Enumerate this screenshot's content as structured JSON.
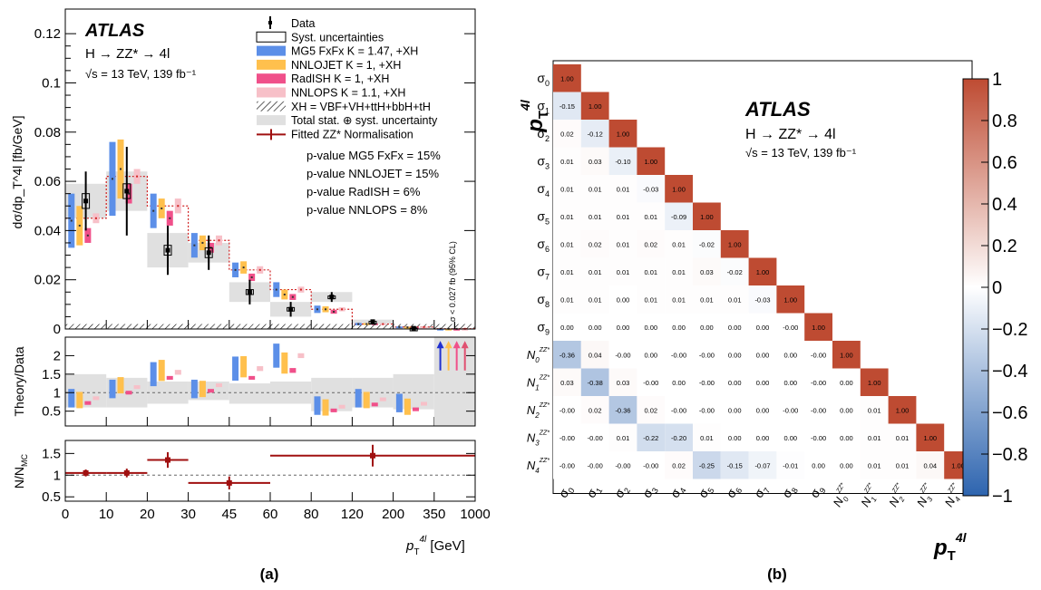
{
  "panel_labels": {
    "a": "(a)",
    "b": "(b)"
  },
  "chart_data": [
    {
      "type": "bar",
      "panel": "a-top",
      "atlas": "ATLAS",
      "process": "H → ZZ* → 4l",
      "energy": "√s = 13 TeV, 139 fb⁻¹",
      "ylabel": "dσ/dp_T^4l [fb/GeV]",
      "xlabel": "p_T^4l [GeV]",
      "ylim": [
        0,
        0.13
      ],
      "y_ticks": [
        "0",
        "0.02",
        "0.04",
        "0.06",
        "0.08",
        "0.1",
        "0.12"
      ],
      "x_ticks": [
        "0",
        "10",
        "20",
        "30",
        "45",
        "60",
        "80",
        "120",
        "200",
        "350",
        "1000"
      ],
      "y_ticks_ratio": [
        "0.5",
        "1",
        "1.5",
        "2"
      ],
      "ylabel_ratio": "Theory/Data",
      "upper_limit_note": "σ < 0.027 fb (95% CL)",
      "legend": [
        {
          "label": "Data",
          "color": "#000000"
        },
        {
          "label": "Syst. uncertainties",
          "color": "#000000"
        },
        {
          "label": "MG5 FxFx K = 1.47, +XH",
          "color": "#5c8fe8"
        },
        {
          "label": "NNLOJET K = 1, +XH",
          "color": "#ffc04d"
        },
        {
          "label": "RadISH K = 1, +XH",
          "color": "#f0508a"
        },
        {
          "label": "NNLOPS K = 1.1, +XH",
          "color": "#f7c0c8"
        },
        {
          "label": "XH = VBF+VH+ttH+bbH+tH",
          "color": "#000000"
        },
        {
          "label": "Total stat. ⊕ syst. uncertainty",
          "color": "#e0e0e0"
        },
        {
          "label": "Fitted ZZ* Normalisation",
          "color": "#a01010"
        }
      ],
      "pvalues": [
        "p-value MG5 FxFx = 15%",
        "p-value NNLOJET = 15%",
        "p-value RadISH = 6%",
        "p-value NNLOPS = 8%"
      ],
      "categories": [
        "0–10",
        "10–20",
        "20–30",
        "30–45",
        "45–60",
        "60–80",
        "80–120",
        "120–200",
        "200–350",
        "350–1000"
      ],
      "series": [
        {
          "name": "Data",
          "values": [
            0.052,
            0.056,
            0.032,
            0.031,
            0.015,
            0.008,
            0.013,
            0.003,
            0.0003,
            0.0
          ]
        },
        {
          "name": "MG5 FxFx",
          "values": [
            0.044,
            0.061,
            0.048,
            0.034,
            0.024,
            0.016,
            0.008,
            0.002,
            0.0008,
            8e-05
          ]
        },
        {
          "name": "NNLOJET",
          "values": [
            0.042,
            0.065,
            0.049,
            0.035,
            0.025,
            0.014,
            0.008,
            0.002,
            0.0007,
            8e-05
          ]
        },
        {
          "name": "RadISH",
          "values": [
            0.038,
            0.055,
            0.045,
            0.033,
            0.021,
            0.013,
            0.007,
            0.002,
            0.0006,
            6e-05
          ]
        },
        {
          "name": "NNLOPS",
          "values": [
            0.045,
            0.062,
            0.05,
            0.036,
            0.024,
            0.016,
            0.008,
            0.002,
            0.0008,
            8e-05
          ]
        }
      ],
      "ratio": {
        "MG5 FxFx": [
          0.85,
          1.1,
          1.5,
          1.1,
          1.65,
          2.0,
          0.65,
          0.85,
          0.72,
          2.0
        ],
        "NNLOJET": [
          0.8,
          1.2,
          1.6,
          1.1,
          1.7,
          1.8,
          0.6,
          0.8,
          0.62,
          2.0
        ],
        "RadISH": [
          0.72,
          1.0,
          1.4,
          1.05,
          1.4,
          1.6,
          0.52,
          0.68,
          0.55,
          2.0
        ],
        "NNLOPS": [
          0.85,
          1.15,
          1.55,
          1.2,
          1.65,
          2.0,
          0.62,
          0.82,
          0.7,
          2.0
        ]
      }
    },
    {
      "type": "scatter",
      "panel": "a-bottom",
      "ylabel": "N/N_MC",
      "y_ticks": [
        "0.5",
        "1",
        "1.5"
      ],
      "bins": [
        "0–10",
        "10–20",
        "20–30",
        "30–60",
        "60–1000"
      ],
      "x_lo": [
        0,
        10,
        20,
        30,
        60
      ],
      "x_hi": [
        10,
        20,
        30,
        60,
        1000
      ],
      "values": [
        1.05,
        1.05,
        1.35,
        0.82,
        1.45
      ],
      "err": [
        0.08,
        0.1,
        0.18,
        0.15,
        0.25
      ]
    },
    {
      "type": "heatmap",
      "panel": "b",
      "atlas": "ATLAS",
      "process": "H → ZZ* → 4l",
      "energy": "√s = 13 TeV, 139 fb⁻¹",
      "axis_label": "p_T^4l",
      "labels": [
        "σ0",
        "σ1",
        "σ2",
        "σ3",
        "σ4",
        "σ5",
        "σ6",
        "σ7",
        "σ8",
        "σ9",
        "N0ZZ*",
        "N1ZZ*",
        "N2ZZ*",
        "N3ZZ*",
        "N4ZZ*"
      ],
      "zlim": [
        -1,
        1
      ],
      "color_ticks": [
        "1",
        "0.8",
        "0.6",
        "0.4",
        "0.2",
        "0",
        "−0.2",
        "−0.4",
        "−0.6",
        "−0.8",
        "−1"
      ],
      "matrix": [
        [
          "1.00"
        ],
        [
          "-0.15",
          "1.00"
        ],
        [
          "0.02",
          "-0.12",
          "1.00"
        ],
        [
          "0.01",
          "0.03",
          "-0.10",
          "1.00"
        ],
        [
          "0.01",
          "0.01",
          "0.01",
          "-0.03",
          "1.00"
        ],
        [
          "0.01",
          "0.01",
          "0.01",
          "0.01",
          "-0.09",
          "1.00"
        ],
        [
          "0.01",
          "0.02",
          "0.01",
          "0.02",
          "0.01",
          "-0.02",
          "1.00"
        ],
        [
          "0.01",
          "0.01",
          "0.01",
          "0.01",
          "0.01",
          "0.03",
          "-0.02",
          "1.00"
        ],
        [
          "0.01",
          "0.01",
          "0.00",
          "0.01",
          "0.01",
          "0.01",
          "0.01",
          "-0.03",
          "1.00"
        ],
        [
          "0.00",
          "0.00",
          "0.00",
          "0.00",
          "0.00",
          "0.00",
          "0.00",
          "0.00",
          "-0.00",
          "1.00"
        ],
        [
          "-0.36",
          "0.04",
          "-0.00",
          "0.00",
          "-0.00",
          "-0.00",
          "0.00",
          "0.00",
          "0.00",
          "-0.00",
          "1.00"
        ],
        [
          "0.03",
          "-0.38",
          "0.03",
          "-0.00",
          "0.00",
          "-0.00",
          "0.00",
          "0.00",
          "0.00",
          "-0.00",
          "0.00",
          "1.00"
        ],
        [
          "-0.00",
          "0.02",
          "-0.36",
          "0.02",
          "-0.00",
          "-0.00",
          "0.00",
          "0.00",
          "-0.00",
          "-0.00",
          "0.00",
          "0.01",
          "1.00"
        ],
        [
          "-0.00",
          "-0.00",
          "0.01",
          "-0.22",
          "-0.20",
          "0.01",
          "0.00",
          "0.00",
          "0.00",
          "-0.00",
          "0.00",
          "0.01",
          "0.01",
          "1.00"
        ],
        [
          "-0.00",
          "-0.00",
          "-0.00",
          "-0.00",
          "0.02",
          "-0.25",
          "-0.15",
          "-0.07",
          "-0.01",
          "0.00",
          "0.00",
          "0.01",
          "0.01",
          "0.04",
          "1.00"
        ]
      ]
    }
  ]
}
